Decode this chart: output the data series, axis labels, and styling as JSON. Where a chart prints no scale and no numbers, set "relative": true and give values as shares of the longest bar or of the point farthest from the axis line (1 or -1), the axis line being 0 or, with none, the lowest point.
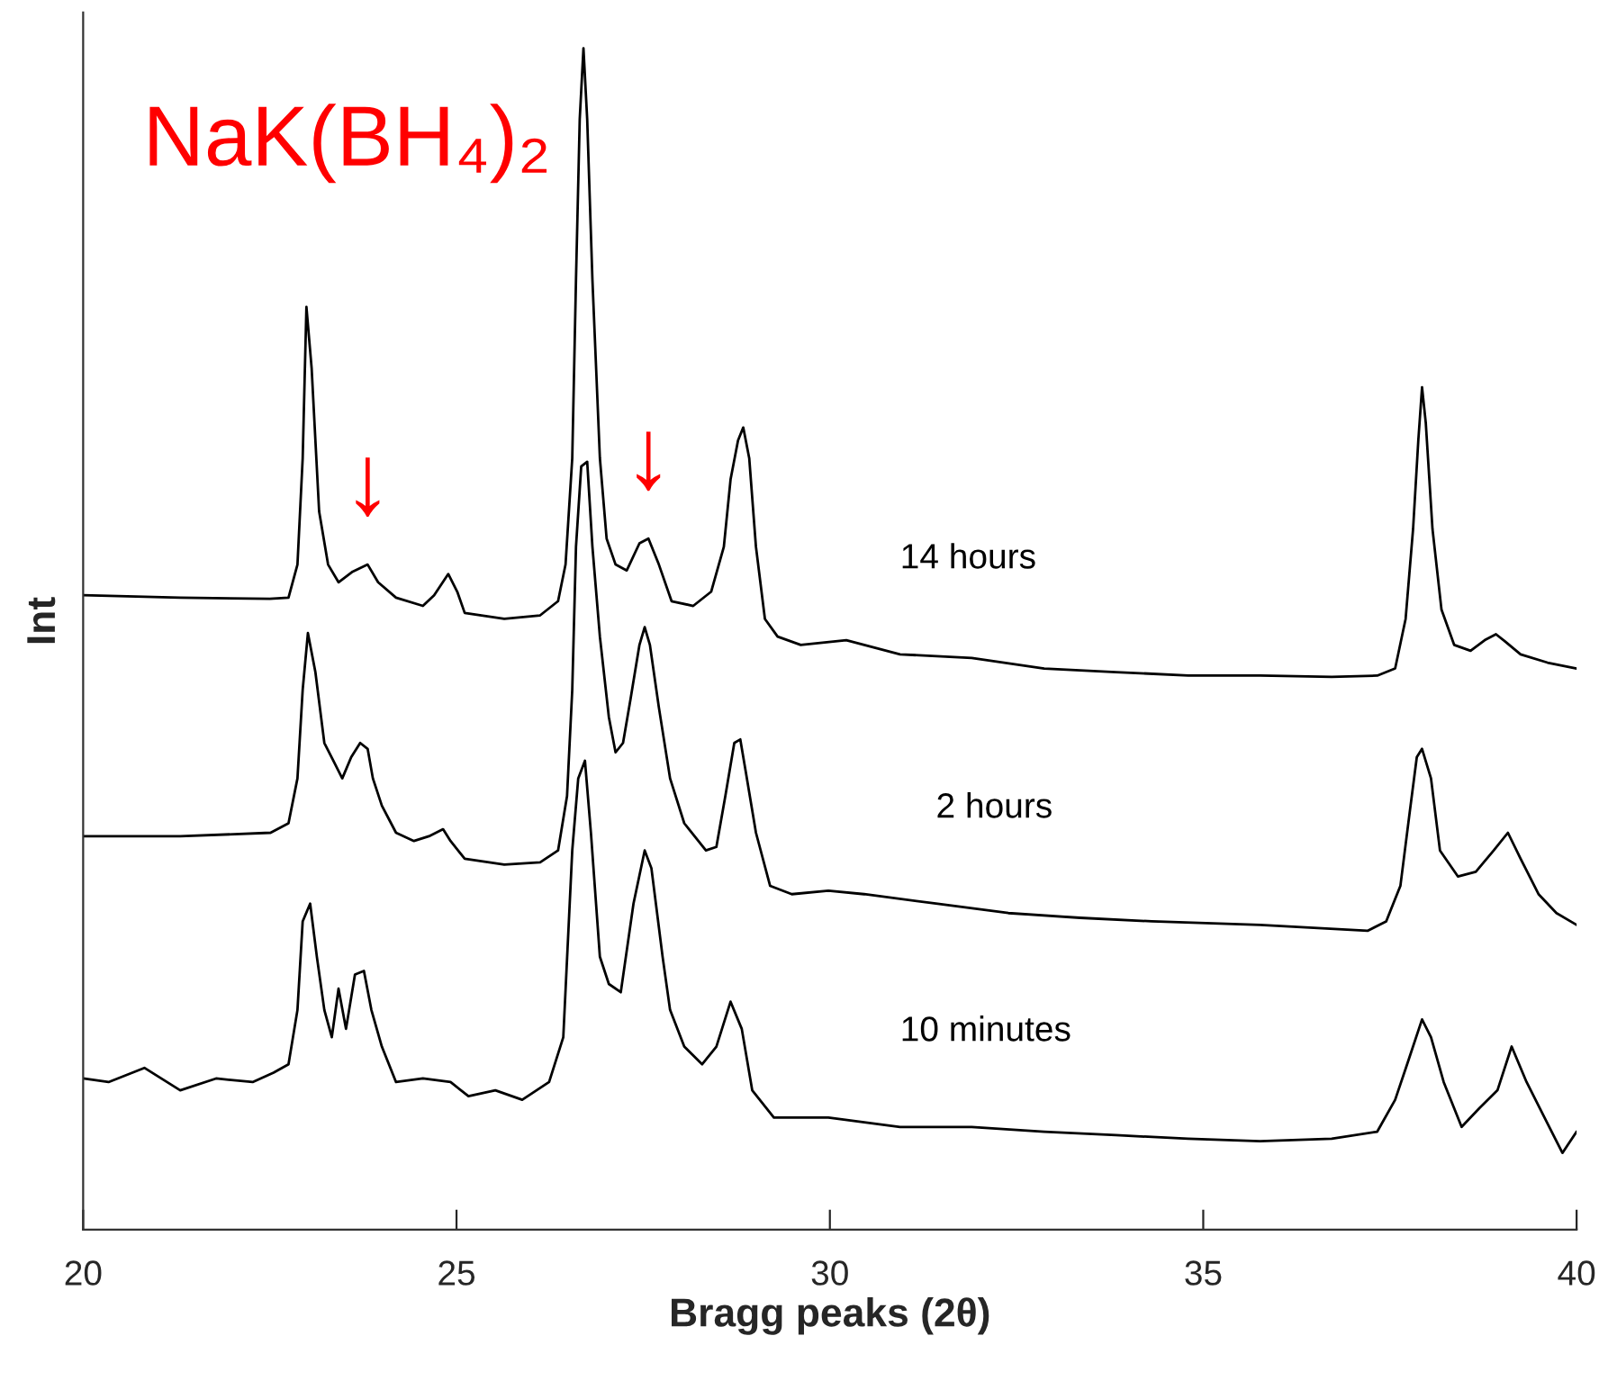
{
  "chart_data": {
    "type": "line",
    "relative": true,
    "xlabel": "Bragg peaks (2θ)",
    "ylabel": "Int",
    "xlim": [
      20,
      40
    ],
    "xticks": [
      20,
      25,
      30,
      35,
      40
    ],
    "grid": false,
    "marker": "none",
    "line_style": "solid",
    "annotations": [
      "NaK(BH₄)₂",
      {
        "text": "↓",
        "x": 23.81,
        "y": 0.563
      },
      {
        "text": "↓",
        "x": 27.57,
        "y": 0.585
      }
    ],
    "series": [
      {
        "name": "14 hours",
        "color": "#000000",
        "x": [
          20.0,
          21.3,
          22.5,
          22.75,
          22.87,
          22.94,
          22.99,
          23.06,
          23.16,
          23.28,
          23.42,
          23.61,
          23.81,
          23.95,
          24.19,
          24.55,
          24.7,
          24.89,
          25.01,
          25.11,
          25.64,
          26.12,
          26.36,
          26.46,
          26.55,
          26.6,
          26.65,
          26.7,
          26.75,
          26.82,
          26.92,
          27.01,
          27.13,
          27.28,
          27.45,
          27.57,
          27.71,
          27.88,
          28.17,
          28.41,
          28.58,
          28.67,
          28.77,
          28.84,
          28.92,
          29.01,
          29.13,
          29.3,
          29.61,
          30.22,
          30.94,
          31.9,
          32.87,
          33.83,
          34.8,
          35.76,
          36.72,
          37.33,
          37.57,
          37.71,
          37.81,
          37.88,
          37.93,
          37.98,
          38.07,
          38.19,
          38.36,
          38.58,
          38.77,
          38.92,
          39.04,
          39.25,
          39.61,
          40.0
        ],
        "values": [
          0.537,
          0.535,
          0.534,
          0.535,
          0.563,
          0.653,
          0.781,
          0.729,
          0.608,
          0.563,
          0.548,
          0.557,
          0.563,
          0.548,
          0.535,
          0.528,
          0.537,
          0.555,
          0.54,
          0.522,
          0.517,
          0.52,
          0.532,
          0.563,
          0.653,
          0.804,
          0.94,
          1.0,
          0.94,
          0.804,
          0.653,
          0.585,
          0.563,
          0.558,
          0.581,
          0.585,
          0.563,
          0.532,
          0.528,
          0.54,
          0.578,
          0.635,
          0.668,
          0.679,
          0.653,
          0.578,
          0.517,
          0.502,
          0.495,
          0.499,
          0.487,
          0.484,
          0.475,
          0.472,
          0.469,
          0.469,
          0.468,
          0.469,
          0.475,
          0.517,
          0.593,
          0.668,
          0.713,
          0.683,
          0.593,
          0.525,
          0.495,
          0.49,
          0.499,
          0.504,
          0.498,
          0.487,
          0.48,
          0.475
        ]
      },
      {
        "name": "2 hours",
        "color": "#000000",
        "x": [
          20.0,
          21.3,
          22.51,
          22.75,
          22.87,
          22.94,
          23.01,
          23.11,
          23.23,
          23.35,
          23.47,
          23.59,
          23.71,
          23.81,
          23.88,
          24.0,
          24.19,
          24.43,
          24.63,
          24.82,
          24.92,
          25.11,
          25.64,
          26.12,
          26.36,
          26.48,
          26.55,
          26.6,
          26.67,
          26.75,
          26.82,
          26.92,
          27.04,
          27.13,
          27.23,
          27.33,
          27.45,
          27.52,
          27.59,
          27.71,
          27.86,
          28.05,
          28.34,
          28.48,
          28.6,
          28.72,
          28.8,
          28.87,
          29.01,
          29.2,
          29.49,
          29.98,
          30.46,
          31.42,
          32.39,
          33.35,
          34.31,
          35.76,
          37.2,
          37.45,
          37.64,
          37.76,
          37.86,
          37.93,
          38.05,
          38.17,
          38.41,
          38.65,
          38.89,
          39.08,
          39.25,
          39.49,
          39.73,
          40.0
        ],
        "values": [
          0.333,
          0.333,
          0.336,
          0.344,
          0.382,
          0.457,
          0.505,
          0.472,
          0.412,
          0.397,
          0.382,
          0.4,
          0.412,
          0.407,
          0.382,
          0.359,
          0.336,
          0.329,
          0.333,
          0.339,
          0.329,
          0.314,
          0.309,
          0.311,
          0.321,
          0.367,
          0.457,
          0.578,
          0.646,
          0.65,
          0.578,
          0.502,
          0.434,
          0.404,
          0.412,
          0.449,
          0.495,
          0.51,
          0.495,
          0.442,
          0.382,
          0.344,
          0.321,
          0.324,
          0.367,
          0.412,
          0.415,
          0.389,
          0.336,
          0.291,
          0.284,
          0.287,
          0.284,
          0.276,
          0.268,
          0.264,
          0.261,
          0.258,
          0.253,
          0.261,
          0.291,
          0.351,
          0.4,
          0.407,
          0.382,
          0.321,
          0.299,
          0.303,
          0.321,
          0.336,
          0.314,
          0.284,
          0.268,
          0.258
        ]
      },
      {
        "name": "10 minutes",
        "color": "#000000",
        "x": [
          20.0,
          20.34,
          20.82,
          21.3,
          21.78,
          22.27,
          22.55,
          22.75,
          22.87,
          22.94,
          23.04,
          23.13,
          23.23,
          23.33,
          23.42,
          23.52,
          23.64,
          23.76,
          23.86,
          24.0,
          24.19,
          24.55,
          24.92,
          25.16,
          25.52,
          25.88,
          26.24,
          26.43,
          26.55,
          26.63,
          26.72,
          26.8,
          26.92,
          27.04,
          27.2,
          27.37,
          27.52,
          27.61,
          27.76,
          27.86,
          28.05,
          28.29,
          28.48,
          28.67,
          28.82,
          28.96,
          29.25,
          29.98,
          30.94,
          31.9,
          32.87,
          33.83,
          34.8,
          35.76,
          36.72,
          37.33,
          37.57,
          37.73,
          37.93,
          38.05,
          38.22,
          38.46,
          38.7,
          38.94,
          39.13,
          39.33,
          39.57,
          39.81,
          40.0
        ],
        "values": [
          0.128,
          0.125,
          0.137,
          0.118,
          0.128,
          0.125,
          0.133,
          0.14,
          0.186,
          0.261,
          0.276,
          0.231,
          0.186,
          0.163,
          0.204,
          0.17,
          0.216,
          0.219,
          0.186,
          0.155,
          0.125,
          0.128,
          0.125,
          0.113,
          0.118,
          0.11,
          0.125,
          0.163,
          0.321,
          0.382,
          0.397,
          0.336,
          0.231,
          0.208,
          0.201,
          0.276,
          0.321,
          0.306,
          0.231,
          0.186,
          0.155,
          0.14,
          0.155,
          0.193,
          0.17,
          0.118,
          0.095,
          0.095,
          0.087,
          0.087,
          0.083,
          0.08,
          0.077,
          0.075,
          0.077,
          0.083,
          0.11,
          0.14,
          0.178,
          0.163,
          0.125,
          0.087,
          0.103,
          0.118,
          0.155,
          0.125,
          0.095,
          0.065,
          0.083
        ]
      }
    ]
  }
}
